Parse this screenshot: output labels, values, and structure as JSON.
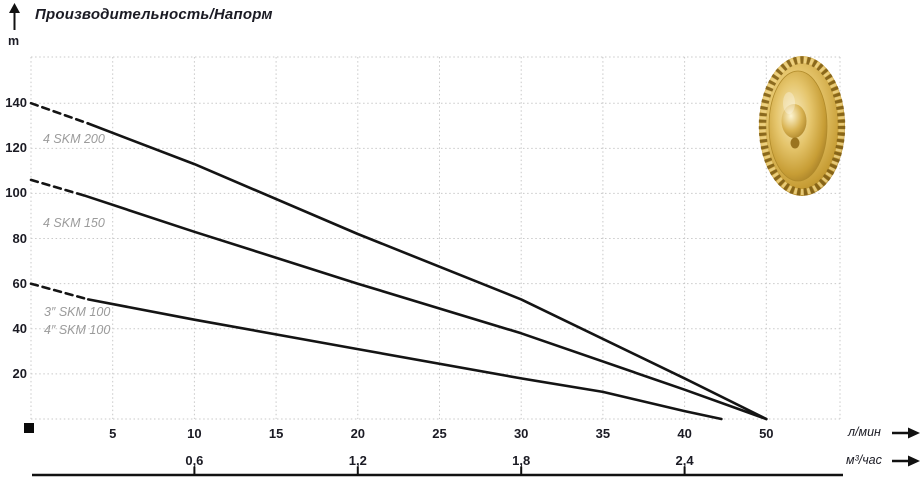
{
  "title": "Производительность/Напорм",
  "y_unit": "m",
  "colors": {
    "text": "#1b1b24",
    "grid": "#c9c9c9",
    "curve": "#141414",
    "curve_label": "#9b9b9b",
    "axis": "#111111",
    "gold_light": "#f8ecc0",
    "gold_mid": "#d9b352",
    "gold_dark": "#8d681d"
  },
  "curve_labels": [
    "4 SKM 200",
    "4 SKM 150",
    "3″ SKM 100",
    "4″ SKM 100"
  ],
  "chart_data": {
    "type": "line",
    "title": "Производительность/Напорм",
    "xlabel": "л/мин",
    "ylabel": "m",
    "grid": true,
    "x_axis": {
      "label": "л/мин",
      "tick_labels": [
        "5",
        "10",
        "15",
        "20",
        "25",
        "30",
        "35",
        "40",
        "50"
      ],
      "tick_values": [
        5,
        10,
        15,
        20,
        25,
        30,
        35,
        40,
        50
      ]
    },
    "x_axis2": {
      "label": "м³/час",
      "tick_labels": [
        "0,6",
        "1,2",
        "1,8",
        "2,4"
      ],
      "tick_positions_lmin": [
        10,
        20,
        30,
        40
      ]
    },
    "y_axis": {
      "unit": "m",
      "tick_values": [
        20,
        40,
        60,
        80,
        100,
        120,
        140
      ],
      "range": [
        0,
        160
      ]
    },
    "series": [
      {
        "name": "4 SKM 200",
        "dash_until": 3.5,
        "points": [
          [
            0,
            140
          ],
          [
            3.5,
            131
          ],
          [
            10,
            113
          ],
          [
            20,
            82
          ],
          [
            30,
            53
          ],
          [
            40,
            18
          ],
          [
            50,
            0
          ]
        ]
      },
      {
        "name": "4 SKM 150",
        "dash_until": 3.3,
        "points": [
          [
            0,
            106
          ],
          [
            3.3,
            99
          ],
          [
            10,
            83
          ],
          [
            20,
            60
          ],
          [
            30,
            38
          ],
          [
            40,
            13
          ],
          [
            50,
            0
          ]
        ]
      },
      {
        "name": "3″/4″ SKM 100",
        "dash_until": 3.5,
        "points": [
          [
            0,
            60
          ],
          [
            3.5,
            53
          ],
          [
            10,
            44
          ],
          [
            20,
            31
          ],
          [
            30,
            18
          ],
          [
            35,
            12
          ],
          [
            40,
            3.5
          ],
          [
            44.5,
            0
          ]
        ]
      }
    ]
  }
}
